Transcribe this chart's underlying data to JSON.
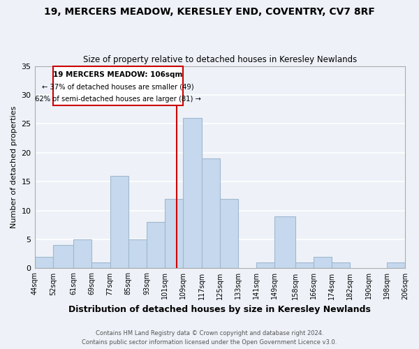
{
  "title": "19, MERCERS MEADOW, KERESLEY END, COVENTRY, CV7 8RF",
  "subtitle": "Size of property relative to detached houses in Keresley Newlands",
  "xlabel": "Distribution of detached houses by size in Keresley Newlands",
  "ylabel": "Number of detached properties",
  "bin_edges": [
    44,
    52,
    61,
    69,
    77,
    85,
    93,
    101,
    109,
    117,
    125,
    133,
    141,
    149,
    158,
    166,
    174,
    182,
    190,
    198,
    206
  ],
  "bar_heights": [
    2,
    4,
    5,
    1,
    16,
    5,
    8,
    12,
    26,
    19,
    12,
    0,
    1,
    9,
    1,
    2,
    1,
    0,
    0,
    1
  ],
  "bar_color": "#c5d8ed",
  "bar_edgecolor": "#a0b8d0",
  "vline_x": 106,
  "vline_color": "#cc0000",
  "ylim": [
    0,
    35
  ],
  "yticks": [
    0,
    5,
    10,
    15,
    20,
    25,
    30,
    35
  ],
  "xlabels": [
    "44sqm",
    "52sqm",
    "61sqm",
    "69sqm",
    "77sqm",
    "85sqm",
    "93sqm",
    "101sqm",
    "109sqm",
    "117sqm",
    "125sqm",
    "133sqm",
    "141sqm",
    "149sqm",
    "158sqm",
    "166sqm",
    "174sqm",
    "182sqm",
    "190sqm",
    "198sqm",
    "206sqm"
  ],
  "annotation_title": "19 MERCERS MEADOW: 106sqm",
  "annotation_line1": "← 37% of detached houses are smaller (49)",
  "annotation_line2": "62% of semi-detached houses are larger (81) →",
  "box_edgecolor": "#cc0000",
  "footer1": "Contains HM Land Registry data © Crown copyright and database right 2024.",
  "footer2": "Contains public sector information licensed under the Open Government Licence v3.0.",
  "background_color": "#eef2f8",
  "grid_color": "#ffffff"
}
